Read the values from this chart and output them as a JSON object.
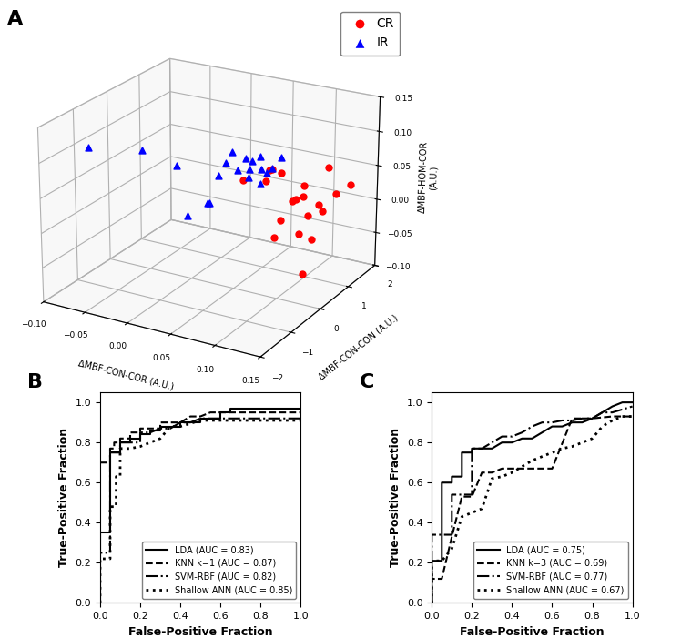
{
  "panel_A_label": "A",
  "panel_B_label": "B",
  "panel_C_label": "C",
  "CR_x": [
    0.05,
    0.08,
    0.1,
    0.12,
    0.13,
    0.14,
    0.15,
    0.1,
    0.09,
    0.11,
    0.07,
    0.06,
    0.13,
    0.12,
    0.08,
    0.14,
    0.15,
    0.09,
    0.11,
    0.1
  ],
  "CR_y": [
    0.3,
    0.2,
    0.1,
    -0.1,
    0.5,
    0.8,
    1.0,
    1.2,
    0.4,
    0.6,
    0.7,
    0.9,
    -0.2,
    0.0,
    1.5,
    0.3,
    -0.5,
    0.2,
    0.6,
    1.8
  ],
  "CR_z": [
    0.05,
    0.06,
    0.08,
    0.05,
    0.03,
    0.04,
    0.05,
    -0.05,
    0.0,
    -0.08,
    0.06,
    0.05,
    0.01,
    0.05,
    0.0,
    0.03,
    0.05,
    -0.02,
    0.05,
    0.04
  ],
  "IR_x": [
    -0.05,
    0.0,
    0.02,
    0.05,
    0.08,
    0.03,
    0.06,
    0.04,
    0.07,
    0.05,
    0.06,
    0.04,
    0.08,
    0.03,
    0.05,
    0.06,
    0.07,
    0.04,
    0.05,
    0.03
  ],
  "IR_y": [
    -1.8,
    -1.5,
    -1.0,
    -0.5,
    0.0,
    0.5,
    0.2,
    0.8,
    0.3,
    0.6,
    1.0,
    0.4,
    0.7,
    -0.3,
    -0.8,
    0.1,
    0.5,
    -1.2,
    0.9,
    0.3
  ],
  "IR_z": [
    0.13,
    0.13,
    0.1,
    0.08,
    0.1,
    0.08,
    0.06,
    0.05,
    0.05,
    0.07,
    0.05,
    0.06,
    0.08,
    0.03,
    0.05,
    0.09,
    0.06,
    0.04,
    0.05,
    0.07
  ],
  "xlabel_3d": "ΔMBF-CON-COR (A.U.)",
  "ylabel_3d": "ΔMBF-CON-CON (A.U.)",
  "zlabel_3d": "ΔMBF-HOM-COR\n(A.U.)",
  "xlim_3d": [
    -0.1,
    0.15
  ],
  "ylim_3d": [
    -2,
    2
  ],
  "zlim_3d": [
    -0.1,
    0.15
  ],
  "xticks_3d": [
    -0.1,
    -0.05,
    0.0,
    0.05,
    0.1,
    0.15
  ],
  "yticks_3d": [
    -2,
    -1,
    0,
    1,
    2
  ],
  "zticks_3d": [
    -0.1,
    -0.05,
    0.0,
    0.05,
    0.1,
    0.15
  ],
  "roc_B_LDA_fpr": [
    0.0,
    0.0,
    0.0,
    0.05,
    0.05,
    0.1,
    0.1,
    0.15,
    0.15,
    0.2,
    0.2,
    0.25,
    0.25,
    0.3,
    0.3,
    0.35,
    0.4,
    0.4,
    0.5,
    0.5,
    0.55,
    0.6,
    0.6,
    0.65,
    0.65,
    1.0
  ],
  "roc_B_LDA_tpr": [
    0.0,
    0.25,
    0.35,
    0.35,
    0.75,
    0.75,
    0.8,
    0.8,
    0.82,
    0.82,
    0.84,
    0.84,
    0.86,
    0.86,
    0.88,
    0.88,
    0.88,
    0.9,
    0.9,
    0.92,
    0.92,
    0.92,
    0.95,
    0.95,
    0.97,
    0.97
  ],
  "roc_B_KNN_fpr": [
    0.0,
    0.0,
    0.0,
    0.05,
    0.05,
    0.07,
    0.07,
    0.1,
    0.1,
    0.15,
    0.15,
    0.2,
    0.2,
    0.25,
    0.3,
    0.3,
    0.35,
    0.4,
    0.45,
    0.5,
    0.55,
    0.6,
    0.65,
    1.0
  ],
  "roc_B_KNN_tpr": [
    0.0,
    0.2,
    0.7,
    0.7,
    0.77,
    0.77,
    0.8,
    0.8,
    0.82,
    0.82,
    0.85,
    0.85,
    0.87,
    0.87,
    0.87,
    0.9,
    0.9,
    0.9,
    0.93,
    0.93,
    0.95,
    0.95,
    0.95,
    0.95
  ],
  "roc_B_SVM_fpr": [
    0.0,
    0.0,
    0.05,
    0.05,
    0.1,
    0.1,
    0.15,
    0.2,
    0.2,
    0.25,
    0.3,
    0.35,
    0.4,
    0.45,
    0.5,
    0.55,
    0.6,
    0.65,
    1.0
  ],
  "roc_B_SVM_tpr": [
    0.0,
    0.25,
    0.25,
    0.75,
    0.75,
    0.8,
    0.8,
    0.8,
    0.85,
    0.85,
    0.87,
    0.87,
    0.9,
    0.9,
    0.92,
    0.92,
    0.92,
    0.92,
    0.92
  ],
  "roc_B_ANN_fpr": [
    0.0,
    0.0,
    0.05,
    0.05,
    0.08,
    0.08,
    0.1,
    0.1,
    0.15,
    0.2,
    0.25,
    0.3,
    0.35,
    0.4,
    0.5,
    0.55,
    0.6,
    0.65,
    1.0
  ],
  "roc_B_ANN_tpr": [
    0.0,
    0.22,
    0.22,
    0.48,
    0.48,
    0.63,
    0.63,
    0.77,
    0.77,
    0.78,
    0.8,
    0.82,
    0.88,
    0.88,
    0.91,
    0.91,
    0.91,
    0.91,
    0.91
  ],
  "roc_C_LDA_fpr": [
    0.0,
    0.0,
    0.05,
    0.05,
    0.1,
    0.1,
    0.15,
    0.15,
    0.2,
    0.2,
    0.25,
    0.3,
    0.35,
    0.4,
    0.45,
    0.5,
    0.55,
    0.6,
    0.65,
    0.7,
    0.75,
    0.8,
    0.85,
    0.9,
    0.95,
    1.0
  ],
  "roc_C_LDA_tpr": [
    0.0,
    0.21,
    0.21,
    0.6,
    0.6,
    0.63,
    0.63,
    0.75,
    0.75,
    0.77,
    0.77,
    0.77,
    0.8,
    0.8,
    0.82,
    0.82,
    0.85,
    0.88,
    0.88,
    0.9,
    0.9,
    0.92,
    0.95,
    0.98,
    1.0,
    1.0
  ],
  "roc_C_KNN_fpr": [
    0.0,
    0.0,
    0.05,
    0.1,
    0.15,
    0.2,
    0.25,
    0.3,
    0.35,
    0.4,
    0.5,
    0.6,
    0.7,
    0.8,
    0.9,
    1.0
  ],
  "roc_C_KNN_tpr": [
    0.0,
    0.12,
    0.12,
    0.33,
    0.53,
    0.53,
    0.65,
    0.65,
    0.67,
    0.67,
    0.67,
    0.67,
    0.92,
    0.92,
    0.93,
    0.93
  ],
  "roc_C_SVM_fpr": [
    0.0,
    0.0,
    0.05,
    0.1,
    0.1,
    0.15,
    0.2,
    0.2,
    0.25,
    0.3,
    0.35,
    0.4,
    0.45,
    0.5,
    0.55,
    0.6,
    0.65,
    0.7,
    0.75,
    0.8,
    0.85,
    0.9,
    1.0
  ],
  "roc_C_SVM_tpr": [
    0.0,
    0.34,
    0.34,
    0.34,
    0.54,
    0.54,
    0.54,
    0.77,
    0.77,
    0.8,
    0.83,
    0.83,
    0.85,
    0.88,
    0.9,
    0.9,
    0.91,
    0.91,
    0.92,
    0.92,
    0.95,
    0.95,
    0.98
  ],
  "roc_C_ANN_fpr": [
    0.0,
    0.0,
    0.05,
    0.1,
    0.15,
    0.2,
    0.25,
    0.3,
    0.35,
    0.4,
    0.45,
    0.5,
    0.55,
    0.6,
    0.65,
    0.7,
    0.75,
    0.8,
    0.85,
    0.9,
    0.95,
    1.0
  ],
  "roc_C_ANN_tpr": [
    0.0,
    0.21,
    0.21,
    0.27,
    0.43,
    0.45,
    0.47,
    0.62,
    0.63,
    0.65,
    0.68,
    0.71,
    0.73,
    0.75,
    0.77,
    0.78,
    0.8,
    0.82,
    0.88,
    0.91,
    0.93,
    0.93
  ],
  "legend_B": [
    "LDA (AUC = 0.83)",
    "KNN k=1 (AUC = 0.87)",
    "SVM-RBF (AUC = 0.82)",
    "Shallow ANN (AUC = 0.85)"
  ],
  "legend_C": [
    "LDA (AUC = 0.75)",
    "KNN k=3 (AUC = 0.69)",
    "SVM-RBF (AUC = 0.77)",
    "Shallow ANN (AUC = 0.67)"
  ],
  "xlabel_roc": "False-Positive Fraction",
  "ylabel_roc": "True-Positive Fraction",
  "view_elev": 22,
  "view_azim": -60
}
